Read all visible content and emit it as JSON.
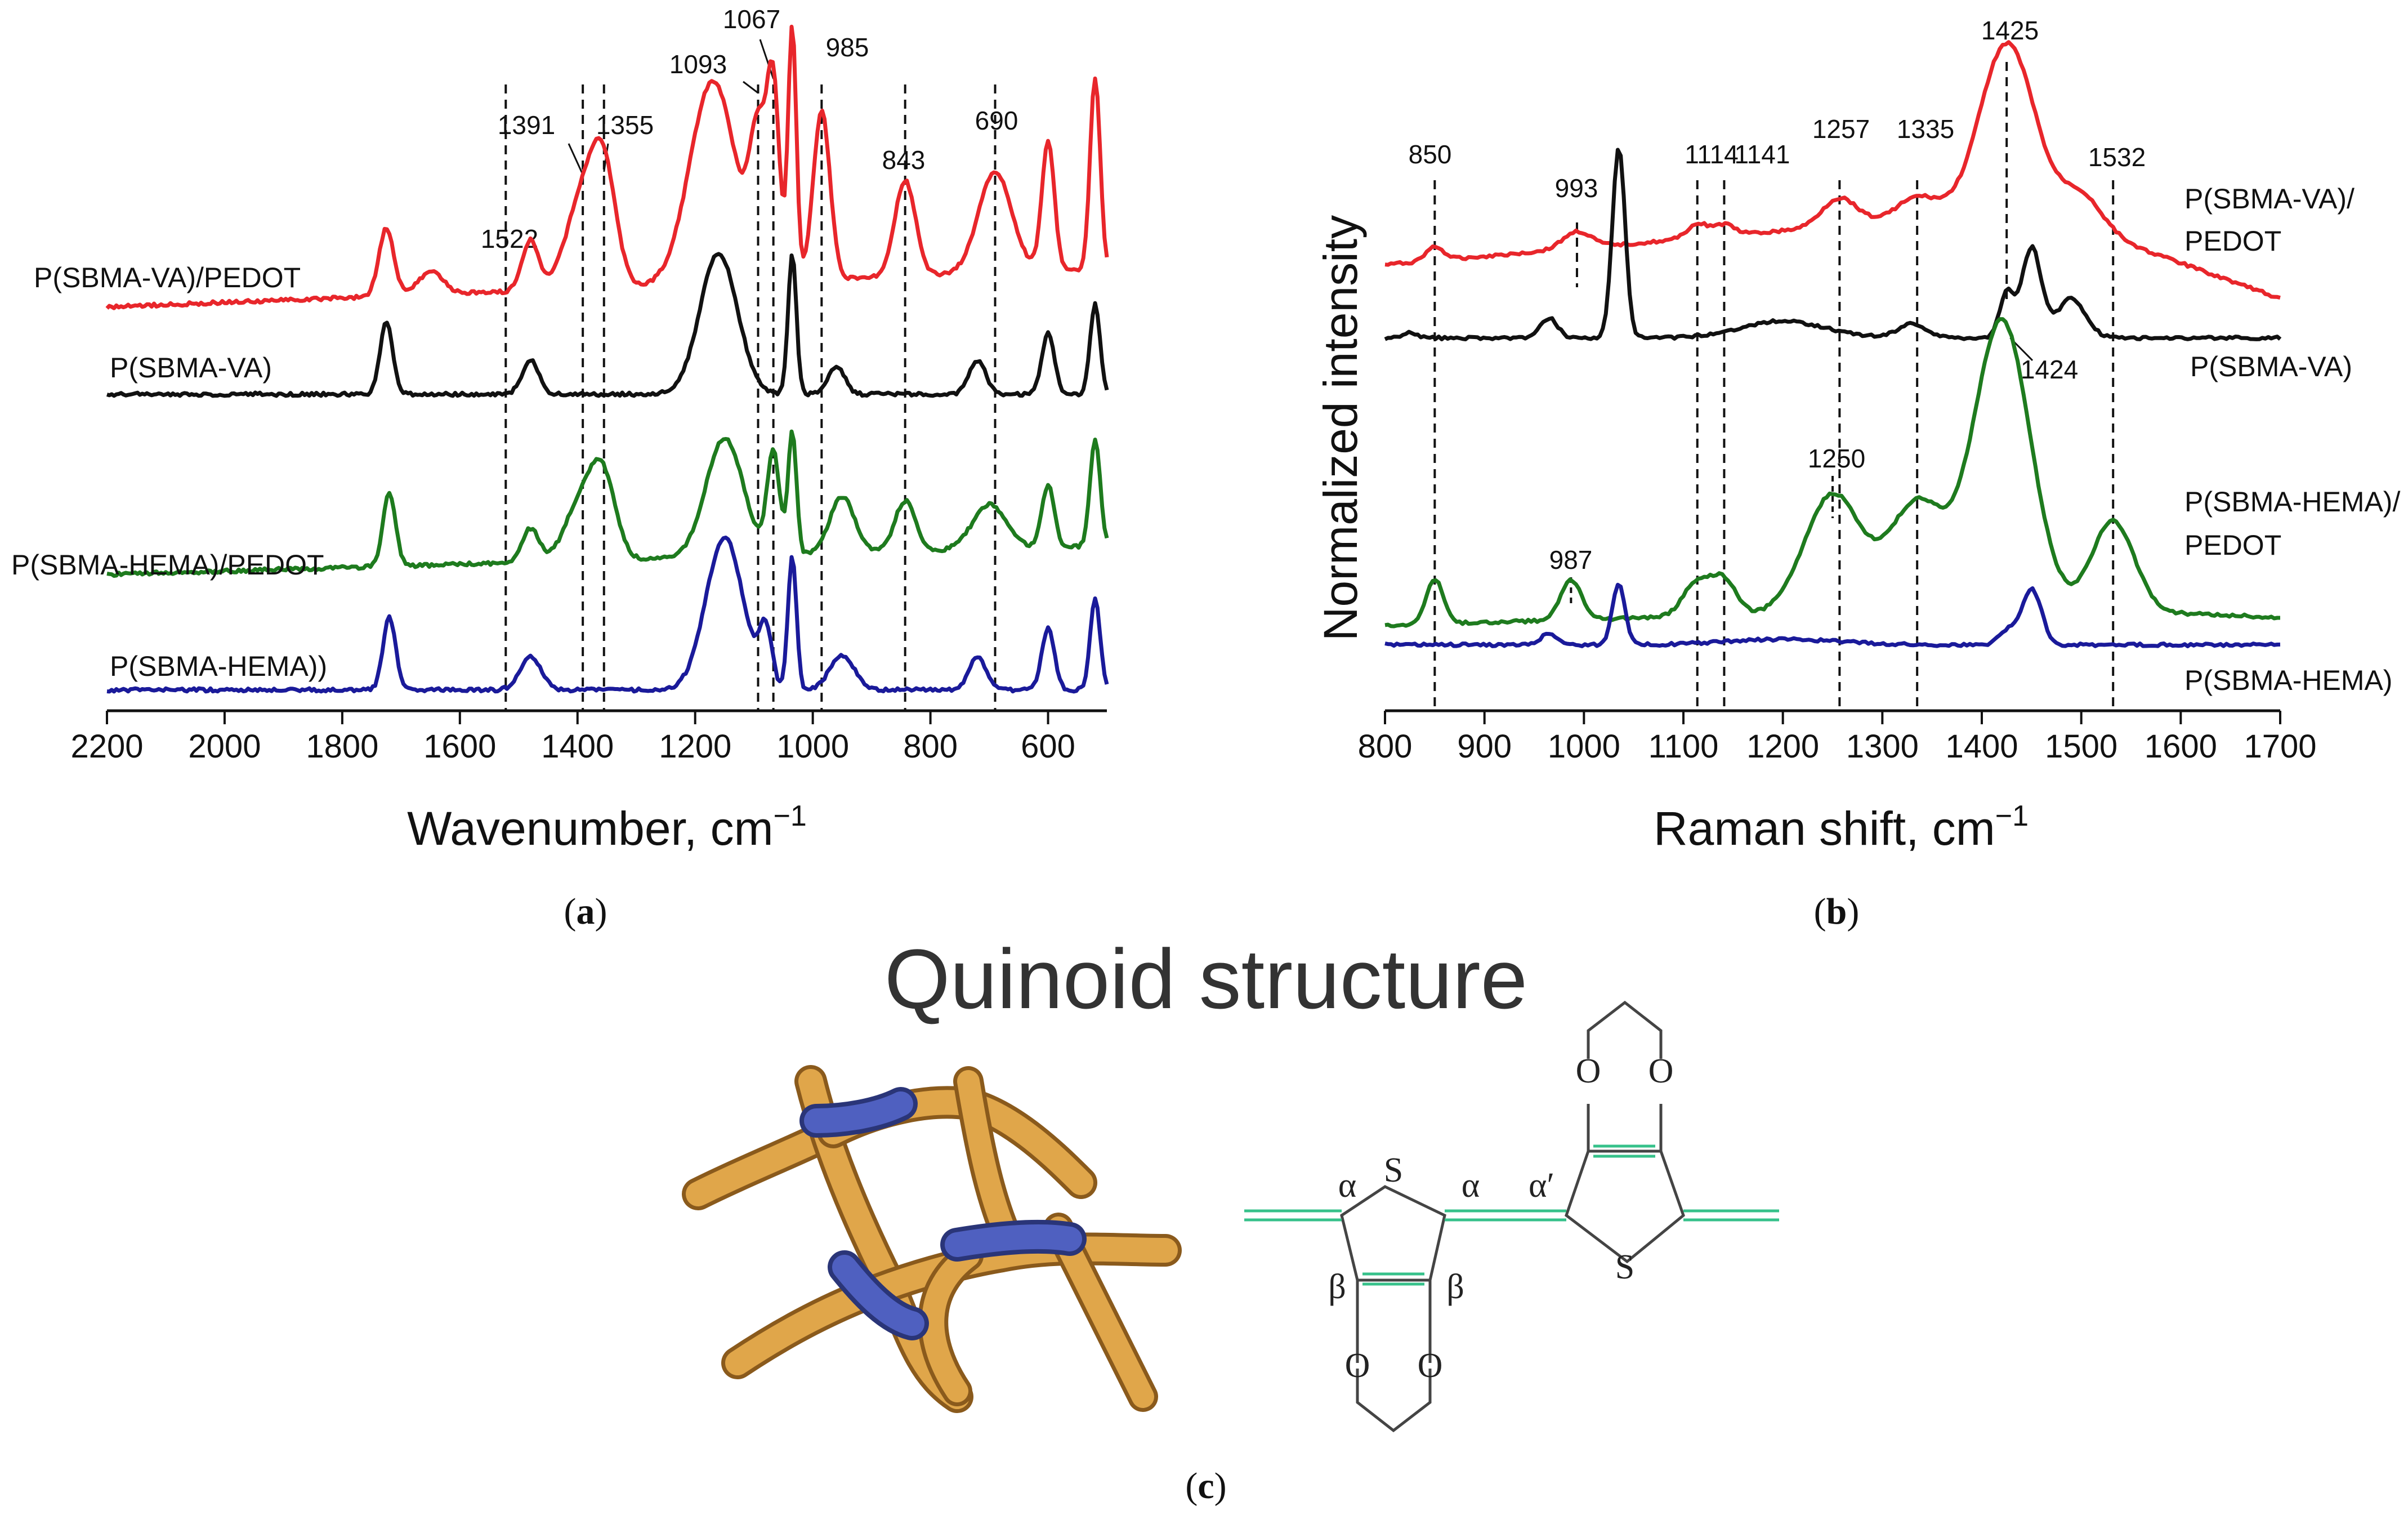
{
  "chart_data": [
    {
      "type": "line",
      "panel_label": "(a)",
      "panel_letter": "a",
      "xlabel": "Wavenumber, cm",
      "xlabel_sup": "−1",
      "ylabel": "",
      "xlim": [
        2200,
        500
      ],
      "x_ticks": [
        "2200",
        "2000",
        "1800",
        "1600",
        "1400",
        "1200",
        "1000",
        "800",
        "600"
      ],
      "marker_lines": [
        {
          "x": 1522,
          "label": "1522"
        },
        {
          "x": 1391,
          "label": "1391"
        },
        {
          "x": 1355,
          "label": "1355"
        },
        {
          "x": 1093,
          "label": "1093"
        },
        {
          "x": 1067,
          "label": "1067"
        },
        {
          "x": 985,
          "label": "985"
        },
        {
          "x": 843,
          "label": "843"
        },
        {
          "x": 690,
          "label": "690"
        }
      ],
      "series": [
        {
          "name": "P(SBMA-VA)/PEDOT",
          "color": "#e8262b"
        },
        {
          "name": "P(SBMA-VA)",
          "color": "#111111"
        },
        {
          "name": "P(SBMA-HEMA)/PEDOT",
          "color": "#1e7b1e"
        },
        {
          "name": "P(SBMA-HEMA))",
          "color": "#1a1a9a"
        }
      ]
    },
    {
      "type": "line",
      "panel_label": "(b)",
      "panel_letter": "b",
      "xlabel": "Raman shift, cm",
      "xlabel_sup": "−1",
      "ylabel": "Normalized intensity",
      "xlim": [
        800,
        1700
      ],
      "x_ticks": [
        "800",
        "900",
        "1000",
        "1100",
        "1200",
        "1300",
        "1400",
        "1500",
        "1600",
        "1700"
      ],
      "marker_lines": [
        {
          "x": 850,
          "label": "850"
        },
        {
          "x": 993,
          "label": "993"
        },
        {
          "x": 1114,
          "label": "1114"
        },
        {
          "x": 1141,
          "label": "1141"
        },
        {
          "x": 1257,
          "label": "1257"
        },
        {
          "x": 1335,
          "label": "1335"
        },
        {
          "x": 1425,
          "label": "1425"
        },
        {
          "x": 1532,
          "label": "1532"
        }
      ],
      "extra_labels": [
        {
          "x": 1424,
          "label": "1424"
        },
        {
          "x": 1250,
          "label": "1250"
        },
        {
          "x": 987,
          "label": "987"
        }
      ],
      "series": [
        {
          "name": "P(SBMA-VA)/",
          "name2": "PEDOT",
          "color": "#e8262b"
        },
        {
          "name": "P(SBMA-VA)",
          "name2": "",
          "color": "#111111"
        },
        {
          "name": "P(SBMA-HEMA)/",
          "name2": "PEDOT",
          "color": "#1e7b1e"
        },
        {
          "name": "P(SBMA-HEMA)",
          "name2": "",
          "color": "#1a1a9a"
        }
      ]
    }
  ],
  "panel_c": {
    "panel_label": "(c)",
    "panel_letter": "c",
    "title": "Quinoid structure",
    "atom_labels": {
      "sulfur": "S",
      "oxygen": "O",
      "alpha": "α",
      "alpha_prime": "α′",
      "beta": "β"
    }
  },
  "colors": {
    "bond_green": "#36c18a",
    "chain_gold": "#e0a64a",
    "chain_blue": "#3f4fa8"
  }
}
